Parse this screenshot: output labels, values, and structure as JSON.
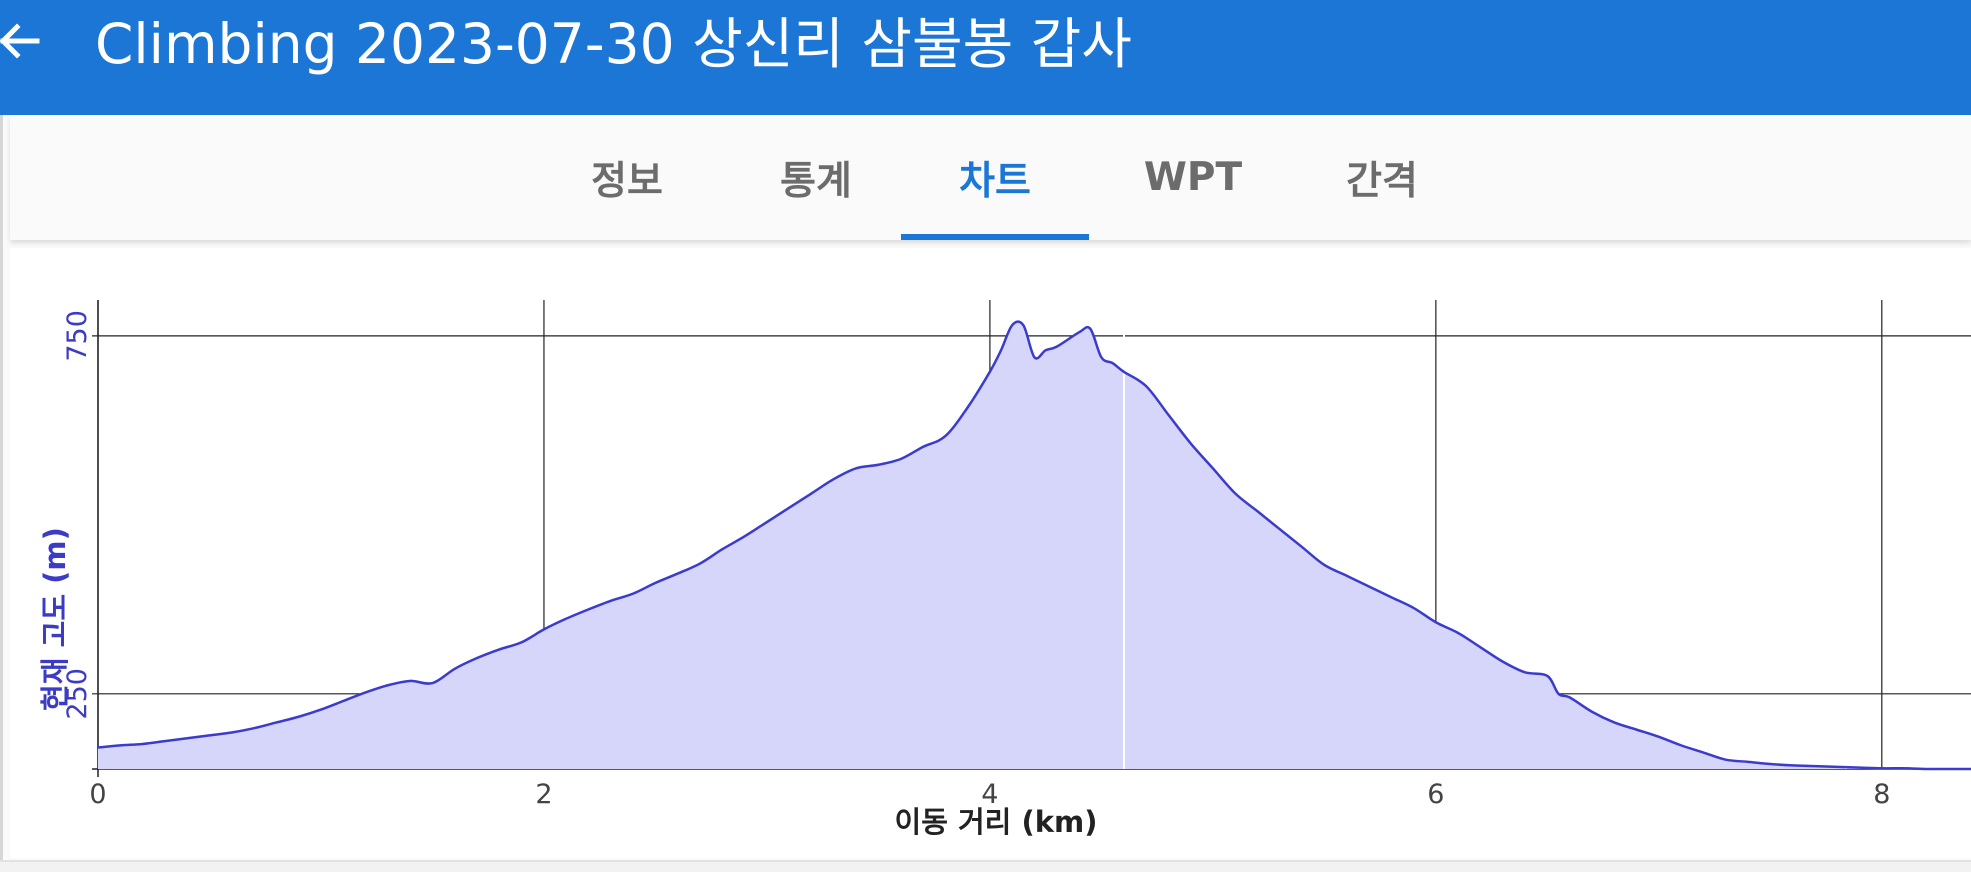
{
  "appbar": {
    "title": "Climbing 2023-07-30 상신리 삼불봉 갑사",
    "back_icon": "arrow-left-icon",
    "background_color": "#1b76d6"
  },
  "tabs": [
    {
      "label": "정보",
      "active": false
    },
    {
      "label": "통계",
      "active": false
    },
    {
      "label": "차트",
      "active": true
    },
    {
      "label": "WPT",
      "active": false
    },
    {
      "label": "간격",
      "active": false
    }
  ],
  "chart_data": {
    "type": "area",
    "xlabel": "이동 거리 (km)",
    "ylabel": "현재 고도 (m)",
    "xlim": [
      0,
      8.4
    ],
    "ylim": [
      145,
      775
    ],
    "x_ticks": [
      "0",
      "2",
      "4",
      "6",
      "8"
    ],
    "y_ticks": [
      "250",
      "750"
    ],
    "grid": true,
    "line_color": "#3b3ccc",
    "fill_color": "#d6d6fa",
    "axis_label_color": "#3b3bc4",
    "series": [
      {
        "x": [
          0,
          0.1,
          0.2,
          0.3,
          0.4,
          0.5,
          0.6,
          0.7,
          0.8,
          0.9,
          1.0,
          1.1,
          1.2,
          1.3,
          1.4,
          1.5,
          1.6,
          1.7,
          1.8,
          1.9,
          2.0,
          2.1,
          2.2,
          2.3,
          2.4,
          2.5,
          2.6,
          2.7,
          2.8,
          2.9,
          3.0,
          3.1,
          3.2,
          3.3,
          3.4,
          3.5,
          3.6,
          3.7,
          3.8,
          3.9,
          4.0,
          4.05,
          4.1,
          4.15,
          4.2,
          4.25,
          4.3,
          4.4,
          4.45,
          4.5,
          4.55,
          4.6,
          4.7,
          4.8,
          4.9,
          5.0,
          5.1,
          5.2,
          5.3,
          5.4,
          5.5,
          5.6,
          5.7,
          5.8,
          5.9,
          6.0,
          6.1,
          6.2,
          6.3,
          6.4,
          6.5,
          6.55,
          6.6,
          6.7,
          6.8,
          6.9,
          7.0,
          7.1,
          7.2,
          7.3,
          7.4,
          7.5,
          7.6,
          7.7,
          7.8,
          7.9,
          8.0,
          8.1,
          8.2,
          8.3,
          8.4
        ],
        "y": [
          175,
          178,
          180,
          184,
          188,
          192,
          196,
          202,
          210,
          218,
          228,
          240,
          252,
          262,
          268,
          265,
          285,
          300,
          312,
          322,
          340,
          355,
          368,
          380,
          390,
          405,
          418,
          432,
          452,
          470,
          490,
          510,
          530,
          550,
          565,
          570,
          578,
          595,
          610,
          650,
          700,
          730,
          765,
          765,
          720,
          730,
          735,
          755,
          760,
          720,
          712,
          700,
          680,
          640,
          600,
          565,
          530,
          505,
          480,
          455,
          430,
          415,
          400,
          385,
          370,
          350,
          335,
          315,
          295,
          280,
          275,
          250,
          245,
          225,
          210,
          200,
          190,
          178,
          168,
          158,
          155,
          152,
          150,
          149,
          148,
          147,
          146,
          146,
          145,
          145,
          145
        ]
      }
    ]
  }
}
